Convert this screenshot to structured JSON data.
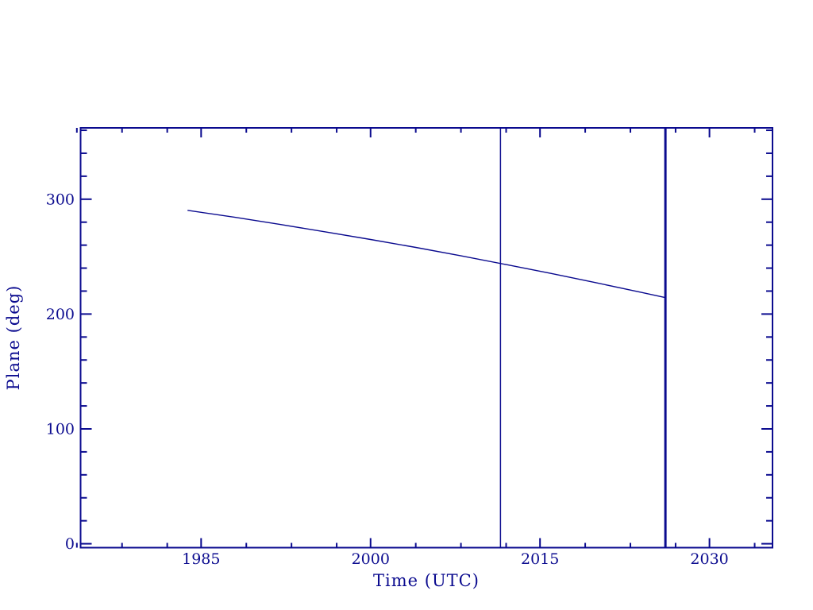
{
  "page": {
    "background": "#ffffff"
  },
  "chart_data": {
    "type": "line",
    "title": "",
    "xlabel": "Time (UTC)",
    "ylabel": "Plane (deg)",
    "grid": false,
    "legend": null,
    "axis_color": "#0b0b8f",
    "line_color": "#0b0b8f",
    "text_color": "#0b0b8f",
    "background_color": "#ffffff",
    "x_domain": [
      1974.33,
      2035.58
    ],
    "y_domain": [
      -3.4,
      362.1
    ],
    "x_major_ticks": [
      1985,
      2000,
      2015,
      2030
    ],
    "x_tick_labels": [
      "1985",
      "2000",
      "2015",
      "2030"
    ],
    "x_minor_ticks": [
      1974,
      1978,
      1982,
      1989,
      1993,
      1997,
      2004,
      2008,
      2012,
      2019,
      2023,
      2027,
      2034
    ],
    "y_major_ticks": [
      0,
      100,
      200,
      300
    ],
    "y_tick_labels": [
      "0",
      "100",
      "200",
      "300"
    ],
    "y_minor_ticks": [
      20,
      40,
      60,
      80,
      120,
      140,
      160,
      180,
      220,
      240,
      260,
      280,
      320,
      340,
      360
    ],
    "series": [
      {
        "name": "plane-angle",
        "x": [
          1983.8,
          1988,
          1992,
          1996,
          2000,
          2004,
          2008,
          2012,
          2016,
          2020,
          2024,
          2026.1
        ],
        "y": [
          290.3,
          284.2,
          278.0,
          271.6,
          264.9,
          258.0,
          250.7,
          243.1,
          235.3,
          227.2,
          218.8,
          214.3
        ]
      }
    ],
    "vertical_markers": [
      {
        "name": "thin-marker",
        "x": 2011.5,
        "stroke_width": 1.5
      },
      {
        "name": "thick-marker",
        "x": 2026.1,
        "stroke_width": 3
      }
    ]
  }
}
